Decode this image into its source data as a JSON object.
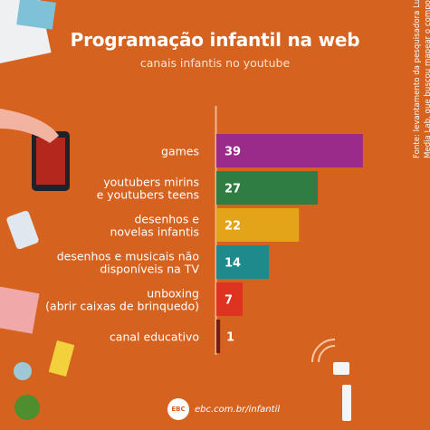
{
  "header": {
    "title": "Programação infantil na web",
    "subtitle": "canais infantis no youtube"
  },
  "chart_data": {
    "type": "bar",
    "orientation": "horizontal",
    "categories": [
      [
        "games"
      ],
      [
        "youtubers mirins",
        "e youtubers teens"
      ],
      [
        "desenhos e",
        "novelas infantis"
      ],
      [
        "desenhos e musicais não",
        "disponíveis na TV"
      ],
      [
        "unboxing",
        "(abrir caixas de brinquedo)"
      ],
      [
        "canal educativo"
      ]
    ],
    "values": [
      39,
      27,
      22,
      14,
      7,
      1
    ],
    "colors": [
      "#9b2b8a",
      "#2f7d43",
      "#e3a41a",
      "#1f8a8c",
      "#de3321",
      "#7a1d11"
    ],
    "xlim": [
      0,
      40
    ],
    "grid": false,
    "legend": "none"
  },
  "source": {
    "line1": "Fonte: levantamento da pesquisadora Luciana Corrêa, do ESPM",
    "line2": "Media Lab, que buscou mapear o comportamento infantil no Youtube"
  },
  "footer": {
    "brand": "EBC",
    "url": "ebc.com.br/infantil"
  }
}
